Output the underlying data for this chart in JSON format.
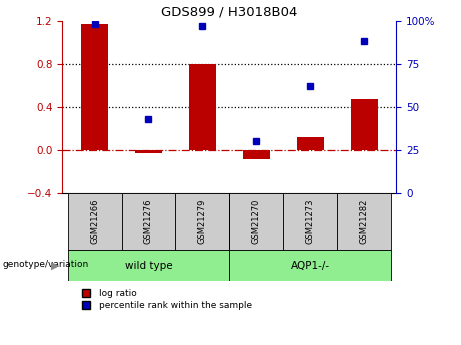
{
  "title": "GDS899 / H3018B04",
  "samples": [
    "GSM21266",
    "GSM21276",
    "GSM21279",
    "GSM21270",
    "GSM21273",
    "GSM21282"
  ],
  "log_ratios": [
    1.17,
    -0.03,
    0.8,
    -0.08,
    0.12,
    0.47
  ],
  "percentile_ranks": [
    98,
    43,
    97,
    30,
    62,
    88
  ],
  "bar_color": "#BB0000",
  "dot_color": "#0000BB",
  "left_ylim": [
    -0.4,
    1.2
  ],
  "right_ylim": [
    0,
    100
  ],
  "left_yticks": [
    -0.4,
    0.0,
    0.4,
    0.8,
    1.2
  ],
  "right_yticks": [
    0,
    25,
    50,
    75,
    100
  ],
  "hline_dotted": [
    0.4,
    0.8
  ],
  "hline_dashdot": 0.0,
  "bar_width": 0.5,
  "sample_box_color": "#cccccc",
  "group_labels": [
    "wild type",
    "AQP1-/-"
  ],
  "group_colors": [
    "#90EE90",
    "#90EE90"
  ],
  "group_ranges": [
    [
      0,
      2
    ],
    [
      3,
      5
    ]
  ],
  "group_label_text": "genotype/variation",
  "legend_items": [
    "log ratio",
    "percentile rank within the sample"
  ],
  "legend_colors": [
    "#BB0000",
    "#0000BB"
  ]
}
